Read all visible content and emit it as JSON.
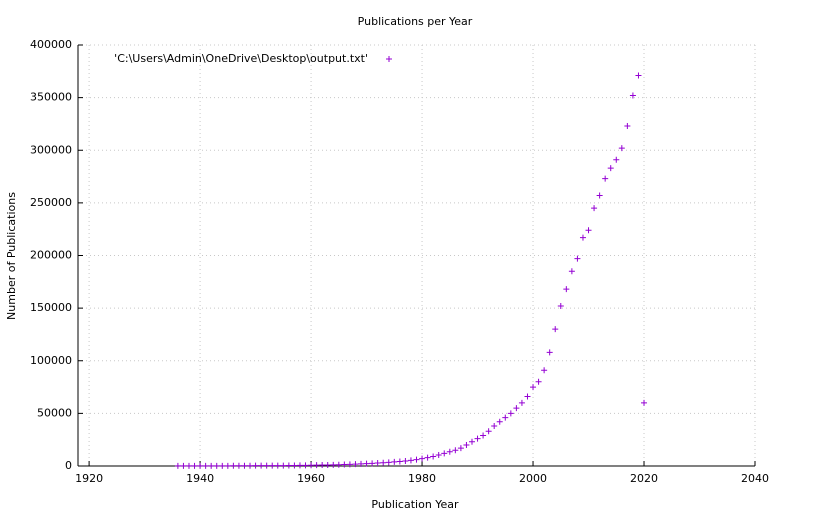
{
  "chart_data": {
    "type": "scatter",
    "title": "Publications per Year",
    "x_label": "Publication Year",
    "y_label": "Number of Publications",
    "series": [
      {
        "name": "'C:\\Users\\Admin\\OneDrive\\Desktop\\output.txt'",
        "color": "#9400d3",
        "x": [
          1936,
          1937,
          1938,
          1939,
          1940,
          1941,
          1942,
          1943,
          1944,
          1945,
          1946,
          1947,
          1948,
          1949,
          1950,
          1951,
          1952,
          1953,
          1954,
          1955,
          1956,
          1957,
          1958,
          1959,
          1960,
          1961,
          1962,
          1963,
          1964,
          1965,
          1966,
          1967,
          1968,
          1969,
          1970,
          1971,
          1972,
          1973,
          1974,
          1975,
          1976,
          1977,
          1978,
          1979,
          1980,
          1981,
          1982,
          1983,
          1984,
          1985,
          1986,
          1987,
          1988,
          1989,
          1990,
          1991,
          1992,
          1993,
          1994,
          1995,
          1996,
          1997,
          1998,
          1999,
          2000,
          2001,
          2002,
          2003,
          2004,
          2005,
          2006,
          2007,
          2008,
          2009,
          2010,
          2011,
          2012,
          2013,
          2014,
          2015,
          2016,
          2017,
          2018,
          2019,
          2020
        ],
        "values": [
          100,
          100,
          150,
          150,
          150,
          150,
          150,
          150,
          150,
          150,
          200,
          200,
          250,
          250,
          300,
          300,
          350,
          350,
          400,
          400,
          450,
          500,
          550,
          600,
          700,
          800,
          900,
          1000,
          1100,
          1200,
          1400,
          1600,
          1800,
          2000,
          2200,
          2500,
          2800,
          3100,
          3500,
          3900,
          4300,
          4800,
          5300,
          6000,
          7000,
          8000,
          9000,
          10500,
          12000,
          13500,
          15000,
          17000,
          20000,
          23000,
          26000,
          29000,
          33000,
          38000,
          42000,
          46000,
          50000,
          55000,
          60000,
          66000,
          75000,
          80000,
          91000,
          108000,
          130000,
          152000,
          168000,
          185000,
          197000,
          217000,
          224000,
          245000,
          257000,
          273000,
          283000,
          291000,
          302000,
          323000,
          352000,
          371000,
          60000
        ]
      }
    ],
    "xlim": [
      1918,
      2040
    ],
    "xticks": [
      1920,
      1940,
      1960,
      1980,
      2000,
      2020,
      2040
    ],
    "ylim": [
      0,
      400000
    ],
    "yticks": [
      0,
      50000,
      100000,
      150000,
      200000,
      250000,
      300000,
      350000,
      400000
    ],
    "grid": true,
    "legend_position": "top-left"
  }
}
